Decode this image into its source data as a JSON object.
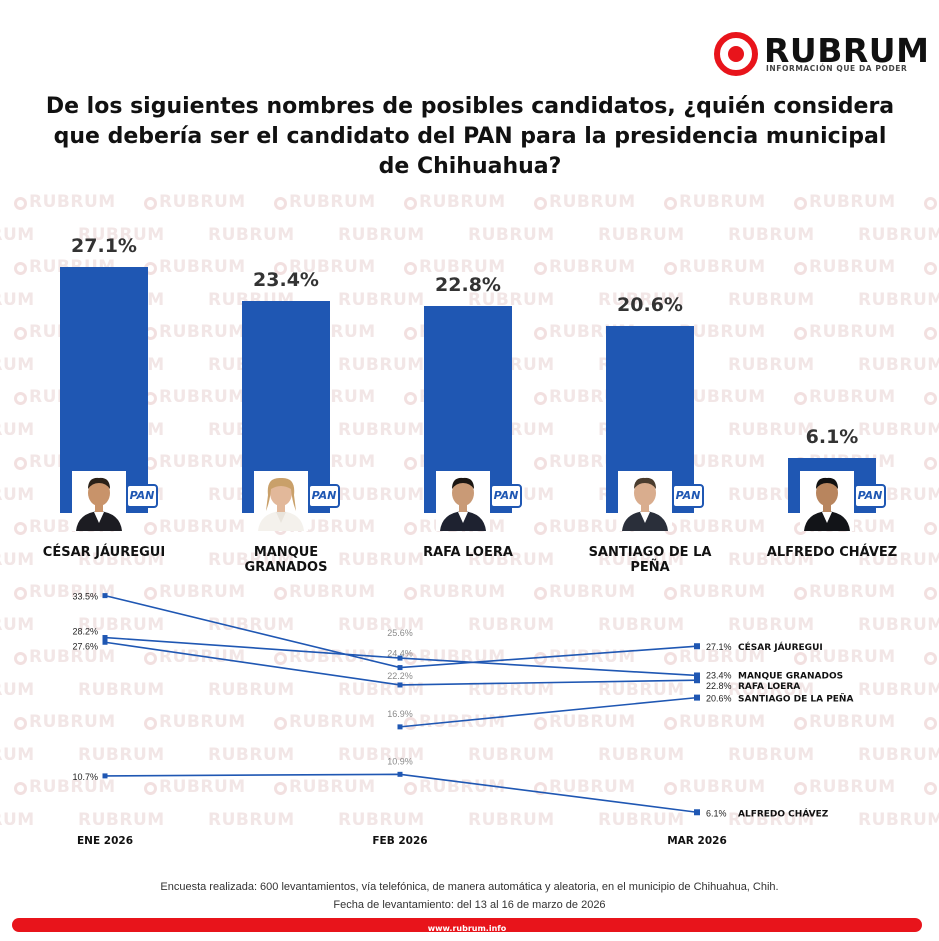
{
  "brand": {
    "name": "RUBRUM",
    "tagline": "INFORMACIÓN QUE DA PODER",
    "watermark": "RUBRUM",
    "accent_color": "#e8141b",
    "bar_color": "#1f57b3"
  },
  "question": "De los siguientes nombres de posibles candidatos, ¿quién considera que debería ser el candidato del PAN para la presidencia municipal de Chihuahua?",
  "party_badge": "PAN",
  "chart_data": [
    {
      "type": "bar",
      "title": "De los siguientes nombres de posibles candidatos, ¿quién considera que debería ser el candidato del PAN para la presidencia municipal de Chihuahua?",
      "categories": [
        "CÉSAR JÁUREGUI",
        "MANQUE GRANADOS",
        "RAFA LOERA",
        "SANTIAGO DE LA PEÑA",
        "ALFREDO CHÁVEZ"
      ],
      "values": [
        27.1,
        23.4,
        22.8,
        20.6,
        6.1
      ],
      "value_labels": [
        "27.1%",
        "23.4%",
        "22.8%",
        "20.6%",
        "6.1%"
      ],
      "unit": "%",
      "ylim": [
        0,
        30
      ]
    },
    {
      "type": "line",
      "x": [
        "ENE 2026",
        "FEB 2026",
        "MAR 2026"
      ],
      "ylim": [
        0,
        40
      ],
      "series": [
        {
          "name": "CÉSAR JÁUREGUI",
          "values": [
            33.5,
            24.4,
            27.1
          ],
          "labels": [
            "33.5%",
            "24.4%",
            "27.1%"
          ]
        },
        {
          "name": "MANQUE GRANADOS",
          "values": [
            28.2,
            25.6,
            23.4
          ],
          "labels": [
            "28.2%",
            "25.6%",
            "23.4%"
          ]
        },
        {
          "name": "RAFA LOERA",
          "values": [
            27.6,
            22.2,
            22.8
          ],
          "labels": [
            "27.6%",
            "22.2%",
            "22.8%"
          ]
        },
        {
          "name": "SANTIAGO DE LA PEÑA",
          "values": [
            null,
            16.9,
            20.6
          ],
          "labels": [
            null,
            "16.9%",
            "20.6%"
          ]
        },
        {
          "name": "ALFREDO CHÁVEZ",
          "values": [
            10.7,
            10.9,
            6.1
          ],
          "labels": [
            "10.7%",
            "10.9%",
            "6.1%"
          ]
        }
      ]
    }
  ],
  "footer": {
    "method": "Encuesta realizada: 600 levantamientos, vía telefónica, de manera automática y aleatoria, en el municipio de Chihuahua, Chih.",
    "date": "Fecha de levantamiento: del 13 al 16 de marzo de 2026",
    "url": "www.rubrum.info"
  }
}
